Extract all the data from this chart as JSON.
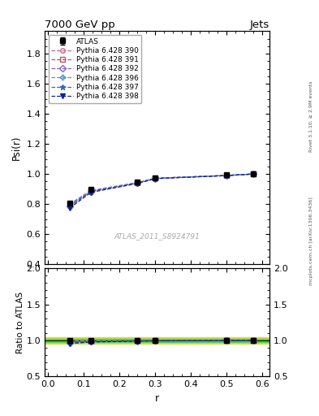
{
  "title": "7000 GeV pp",
  "title_right": "Jets",
  "ylabel_main": "Psi(r)",
  "ylabel_ratio": "Ratio to ATLAS",
  "xlabel": "r",
  "watermark": "ATLAS_2011_S8924791",
  "rivet_text": "Rivet 3.1.10, ≥ 2.9M events",
  "arxiv_text": "mcplots.cern.ch [arXiv:1306.3436]",
  "r_values": [
    0.06,
    0.12,
    0.25,
    0.3,
    0.5,
    0.575
  ],
  "atlas_psi": [
    0.808,
    0.897,
    0.947,
    0.975,
    0.993,
    1.002
  ],
  "atlas_err": [
    0.008,
    0.006,
    0.005,
    0.004,
    0.003,
    0.002
  ],
  "pythia_390": [
    0.793,
    0.886,
    0.941,
    0.971,
    0.99,
    1.0
  ],
  "pythia_391": [
    0.8,
    0.891,
    0.943,
    0.972,
    0.991,
    1.0
  ],
  "pythia_392": [
    0.783,
    0.882,
    0.939,
    0.97,
    0.99,
    1.0
  ],
  "pythia_396": [
    0.795,
    0.887,
    0.941,
    0.972,
    0.991,
    1.0
  ],
  "pythia_397": [
    0.789,
    0.884,
    0.94,
    0.971,
    0.99,
    1.0
  ],
  "pythia_398": [
    0.773,
    0.878,
    0.937,
    0.969,
    0.989,
    1.0
  ],
  "color_390": "#cc6688",
  "color_391": "#bb5566",
  "color_392": "#8866cc",
  "color_396": "#5599cc",
  "color_397": "#3366bb",
  "color_398": "#112299",
  "main_ylim": [
    0.4,
    1.95
  ],
  "main_yticks": [
    0.4,
    0.6,
    0.8,
    1.0,
    1.2,
    1.4,
    1.6,
    1.8
  ],
  "ratio_ylim": [
    0.5,
    2.0
  ],
  "ratio_yticks": [
    0.5,
    1.0,
    1.5,
    2.0
  ],
  "xlim": [
    -0.01,
    0.62
  ],
  "xticks": [
    0.0,
    0.1,
    0.2,
    0.3,
    0.4,
    0.5,
    0.6
  ],
  "band_color_inner": "#55cc55",
  "band_color_outer": "#dddd44",
  "band_inner": 0.02,
  "band_outer": 0.05
}
